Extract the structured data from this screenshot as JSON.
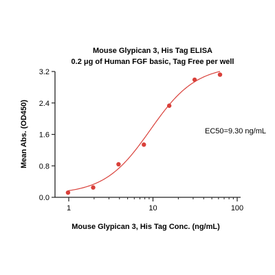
{
  "chart_data": {
    "type": "scatter",
    "title": "Mouse Glypican 3, His Tag ELISA",
    "subtitle": "0.2 μg of Human FGF basic, Tag Free per well",
    "xlabel": "Mouse Glypican 3, His Tag Conc. (ng/mL)",
    "ylabel": "Mean Abs. (OD450)",
    "x_scale": "log",
    "xlim": [
      1,
      100
    ],
    "ylim": [
      0,
      3.2
    ],
    "x_ticks": [
      1,
      10,
      100
    ],
    "x_tick_labels": [
      "1",
      "10",
      "100"
    ],
    "y_ticks": [
      0,
      0.8,
      1.6,
      2.4,
      3.2
    ],
    "y_tick_labels": [
      "0.0",
      "0.8",
      "1.6",
      "2.4",
      "3.2"
    ],
    "grid": false,
    "legend": "none",
    "color": "#d9403a",
    "series": [
      {
        "x": [
          0.98,
          1.95,
          3.9,
          7.8,
          15.6,
          31.25,
          62.5
        ],
        "y": [
          0.12,
          0.25,
          0.84,
          1.34,
          2.33,
          2.99,
          3.12
        ],
        "fit": {
          "model": "4PL",
          "bottom": 0.08,
          "top": 3.35,
          "ec50": 9.3,
          "hill": 1.6
        }
      }
    ],
    "annotations": [
      "EC50=9.30 ng/mL"
    ]
  }
}
